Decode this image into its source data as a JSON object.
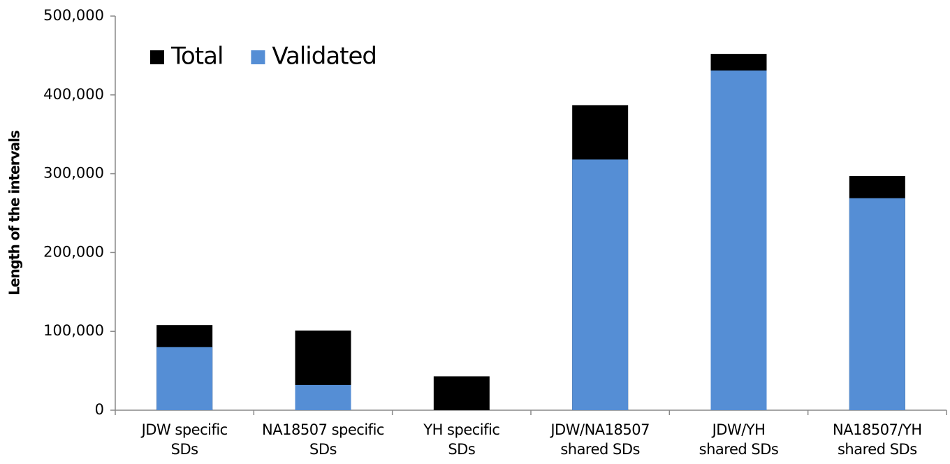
{
  "chart_data": {
    "type": "bar",
    "overlap": true,
    "y_label": "Length of the intervals",
    "categories": [
      "JDW specific\nSDs",
      "NA18507 specific\nSDs",
      "YH specific\nSDs",
      "JDW/NA18507\nshared SDs",
      "JDW/YH\nshared SDs",
      "NA18507/YH\nshared SDs"
    ],
    "series": [
      {
        "name": "Total",
        "color": "#000000",
        "values": [
          108000,
          101000,
          43000,
          387000,
          452000,
          297000
        ]
      },
      {
        "name": "Validated",
        "color": "#558ed5",
        "values": [
          80000,
          32000,
          0,
          318000,
          431000,
          269000
        ]
      }
    ],
    "ylim": [
      0,
      500000
    ],
    "yticks": [
      0,
      {
        "value": 100000,
        "label": "100,000"
      },
      {
        "value": 200000,
        "label": "200,000"
      },
      {
        "value": 300000,
        "label": "300,000"
      },
      {
        "value": 400000,
        "label": "400,000"
      },
      {
        "value": 500000,
        "label": "500,000"
      }
    ],
    "grid": false,
    "legend": "top-left"
  }
}
